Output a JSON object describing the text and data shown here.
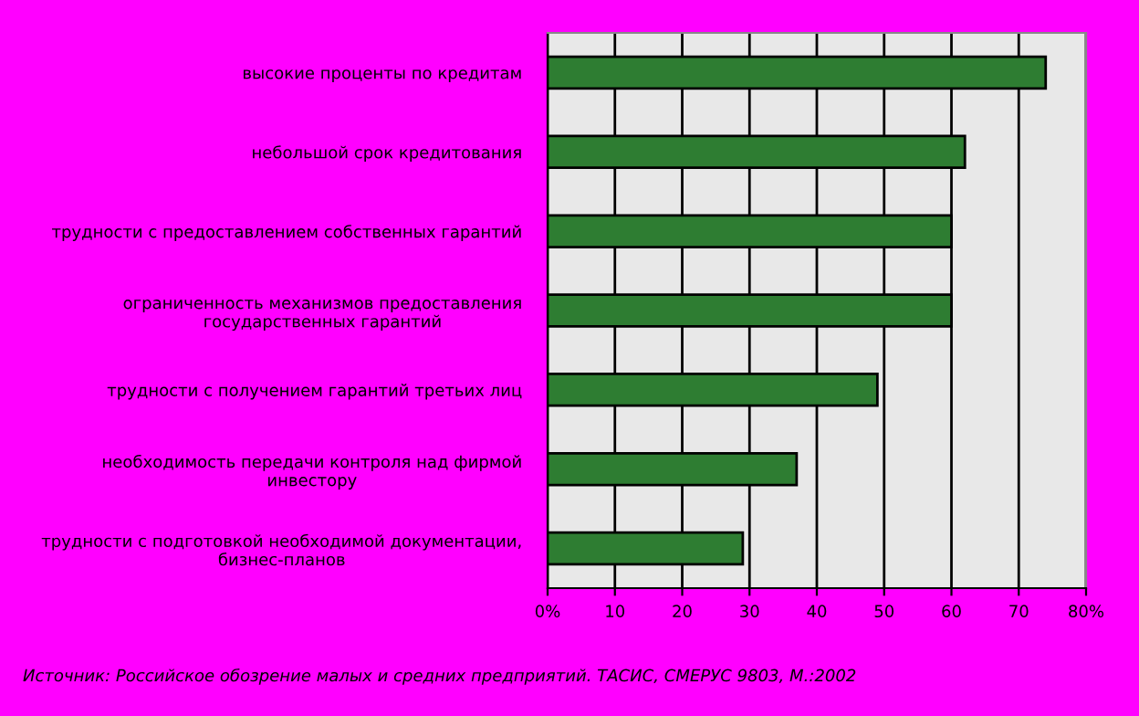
{
  "chart_data": {
    "type": "bar",
    "orientation": "horizontal",
    "categories": [
      "высокие проценты по кредитам",
      "небольшой срок кредитования",
      "трудности с предоставлением собственных гарантий",
      "ограниченность механизмов предоставления\nгосударственных гарантий",
      "трудности с получением гарантий третьих лиц",
      "необходимость передачи контроля над фирмой\nинвестору",
      "трудности с подготовкой необходимой документации,\nбизнес-планов"
    ],
    "values": [
      74,
      62,
      60,
      60,
      49,
      37,
      29
    ],
    "color": "#2e7d32",
    "xlim": [
      0,
      80
    ],
    "xticks": [
      {
        "value": 0,
        "label": "0%"
      },
      10,
      20,
      30,
      40,
      50,
      60,
      70,
      {
        "value": 80,
        "label": "80%"
      }
    ],
    "grid": "x",
    "legend": false,
    "annotations": [
      "Источник: Российское обозрение малых и средних предприятий. ТАСИС, СМЕРУС 9803, М.:2002"
    ]
  }
}
